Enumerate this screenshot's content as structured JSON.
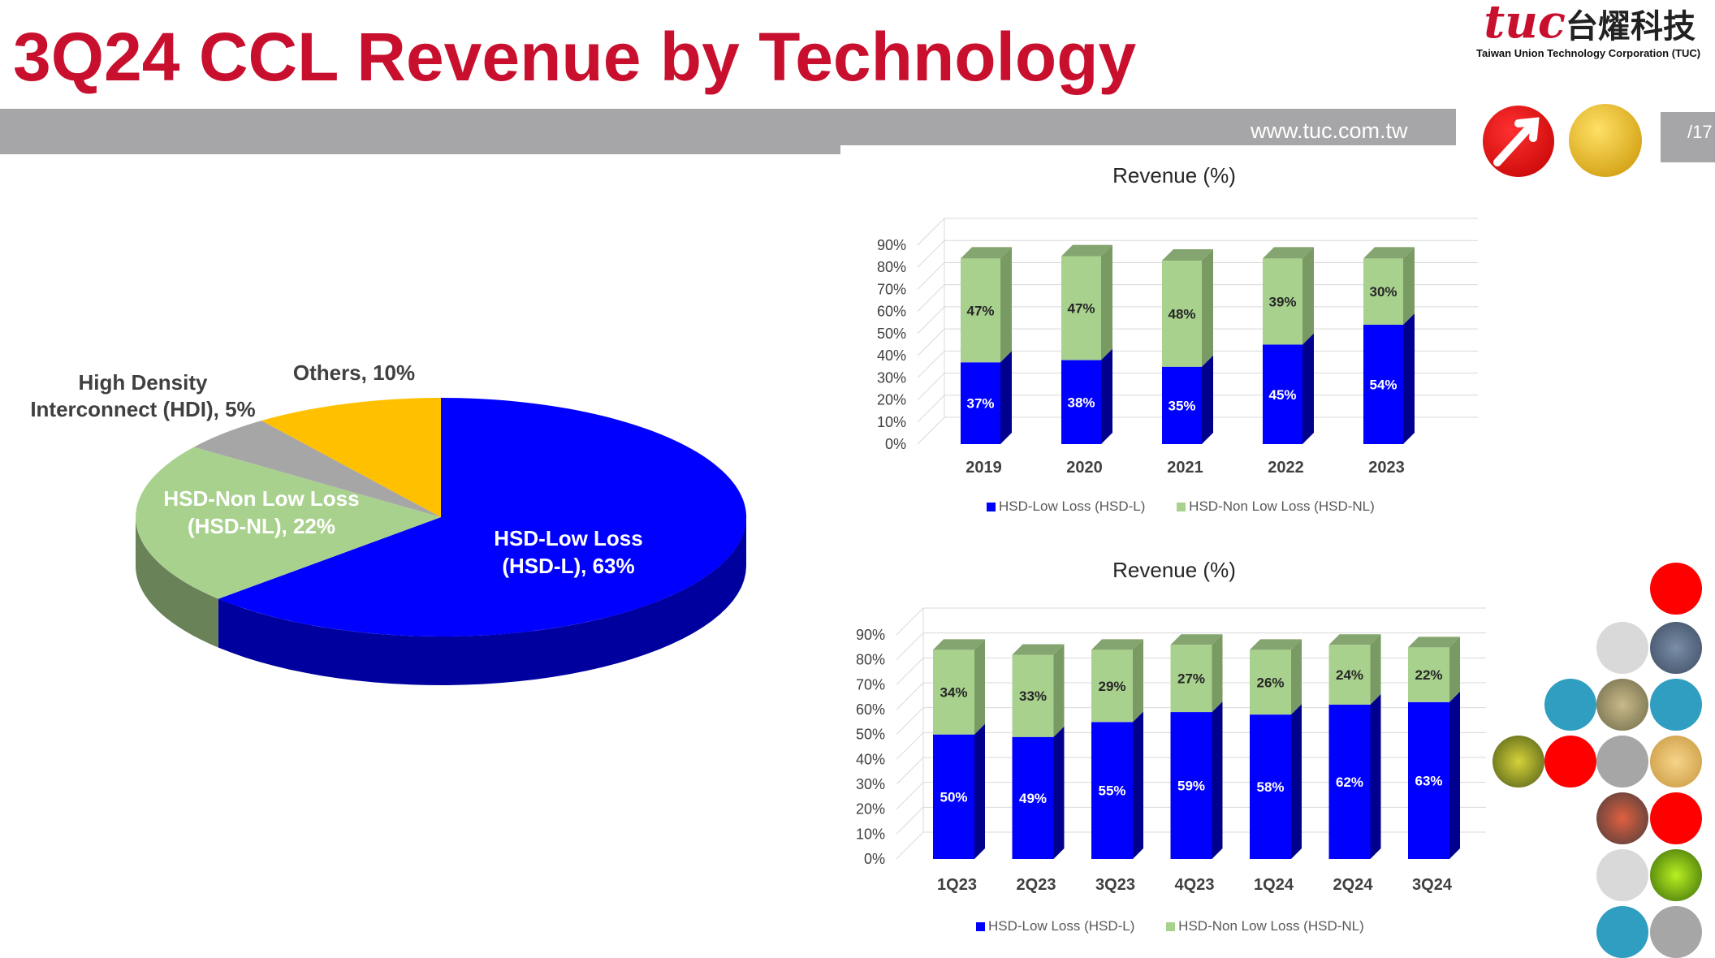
{
  "slide": {
    "title": "3Q24 CCL Revenue by Technology",
    "url": "www.tuc.com.tw",
    "page": "/17"
  },
  "logo": {
    "mark": "tuc",
    "chinese": "台燿科技",
    "company": "Taiwan Union Technology Corporation (TUC)"
  },
  "colors": {
    "brand_red": "#c8102e",
    "hsd_l": "#0000ff",
    "hsd_nl": "#a9d18e",
    "others": "#ffc000",
    "hdi": "#a6a6a6",
    "band": "#a6a6a8"
  },
  "chart_data": [
    {
      "type": "pie",
      "title": "",
      "slices": [
        {
          "label": "HSD-Low Loss (HSD-L), 63%",
          "value": 63
        },
        {
          "label": "HSD-Non Low Loss (HSD-NL), 22%",
          "value": 22
        },
        {
          "label": "High Density Interconnect (HDI), 5%",
          "value": 5
        },
        {
          "label": "Others, 10%",
          "value": 10
        }
      ]
    },
    {
      "type": "bar",
      "stacked": true,
      "title": "Revenue (%)",
      "categories": [
        "2019",
        "2020",
        "2021",
        "2022",
        "2023"
      ],
      "series": [
        {
          "name": "HSD-Low Loss (HSD-L)",
          "values": [
            37,
            38,
            35,
            45,
            54
          ],
          "labels": [
            "37%",
            "38%",
            "35%",
            "45%",
            "54%"
          ]
        },
        {
          "name": "HSD-Non Low Loss (HSD-NL)",
          "values": [
            47,
            47,
            48,
            39,
            30
          ],
          "labels": [
            "47%",
            "47%",
            "48%",
            "39%",
            "30%"
          ]
        }
      ],
      "ylim": [
        0,
        90
      ],
      "yticks": [
        "0%",
        "10%",
        "20%",
        "30%",
        "40%",
        "50%",
        "60%",
        "70%",
        "80%",
        "90%"
      ],
      "grid": true,
      "legend_position": "bottom"
    },
    {
      "type": "bar",
      "stacked": true,
      "title": "Revenue (%)",
      "categories": [
        "1Q23",
        "2Q23",
        "3Q23",
        "4Q23",
        "1Q24",
        "2Q24",
        "3Q24"
      ],
      "series": [
        {
          "name": "HSD-Low Loss (HSD-L)",
          "values": [
            50,
            49,
            55,
            59,
            58,
            62,
            63
          ],
          "labels": [
            "50%",
            "49%",
            "55%",
            "59%",
            "58%",
            "62%",
            "63%"
          ]
        },
        {
          "name": "HSD-Non Low Loss (HSD-NL)",
          "values": [
            34,
            33,
            29,
            27,
            26,
            24,
            22
          ],
          "labels": [
            "34%",
            "33%",
            "29%",
            "27%",
            "26%",
            "24%",
            "22%"
          ]
        }
      ],
      "ylim": [
        0,
        90
      ],
      "yticks": [
        "0%",
        "10%",
        "20%",
        "30%",
        "40%",
        "50%",
        "60%",
        "70%",
        "80%",
        "90%"
      ],
      "grid": true,
      "legend_position": "bottom"
    }
  ]
}
